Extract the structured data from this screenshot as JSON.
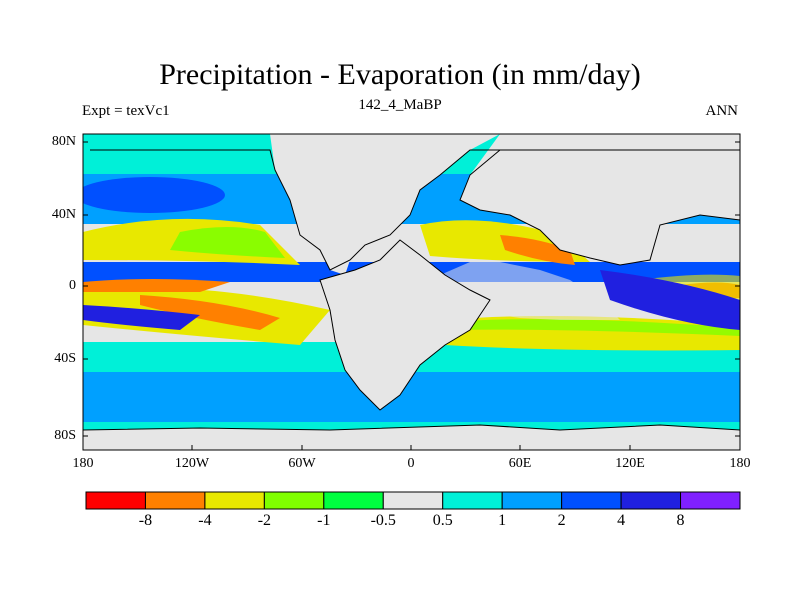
{
  "header": {
    "title": "Precipitation - Evaporation (in mm/day)",
    "left_label": "Expt = texVc1",
    "center_label": "142_4_MaBP",
    "right_label": "ANN"
  },
  "map": {
    "y_ticks": [
      "80N",
      "40N",
      "0",
      "40S",
      "80S"
    ],
    "x_ticks": [
      "180",
      "120W",
      "60W",
      "0",
      "60E",
      "120E",
      "180"
    ]
  },
  "colorbar": {
    "colors": [
      "#ff0000",
      "#ff8000",
      "#e8e800",
      "#80ff00",
      "#00ff40",
      "#e6e6e6",
      "#00f0d8",
      "#00a0ff",
      "#0050ff",
      "#2020e0",
      "#8020ff"
    ],
    "labels": [
      "-8",
      "-4",
      "-2",
      "-1",
      "-0.5",
      "0.5",
      "1",
      "2",
      "4",
      "8"
    ]
  },
  "palette": {
    "neutral": "#e6e6e6",
    "cyan": "#00f0d8",
    "sky": "#00a0ff",
    "blue": "#0050ff",
    "navy": "#2020e0",
    "yellow": "#e8e800",
    "lime": "#80ff00",
    "green": "#00ff40",
    "orange": "#ff8000",
    "red": "#ff0000"
  }
}
